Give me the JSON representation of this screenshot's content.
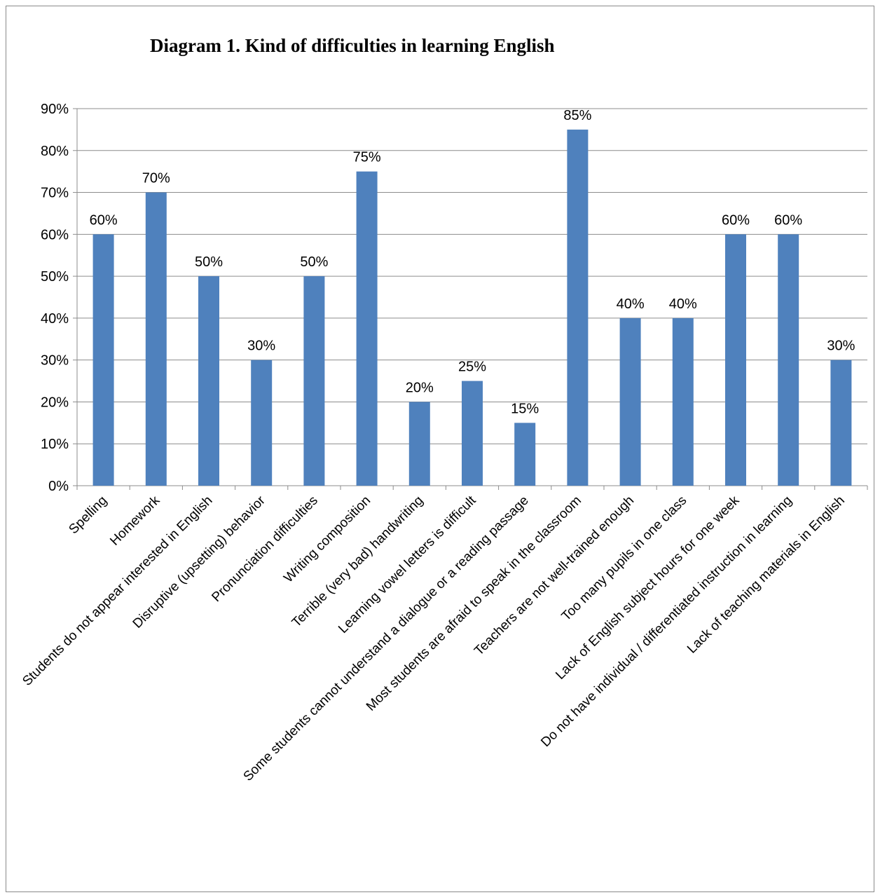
{
  "chart_data": {
    "type": "bar",
    "title": "Diagram 1. Kind of difficulties in learning English",
    "xlabel": "",
    "ylabel": "",
    "ylim": [
      0,
      0.9
    ],
    "y_tick_values": [
      0,
      0.1,
      0.2,
      0.3,
      0.4,
      0.5,
      0.6,
      0.7,
      0.8,
      0.9
    ],
    "y_tick_labels": [
      "0%",
      "10%",
      "20%",
      "30%",
      "40%",
      "50%",
      "60%",
      "70%",
      "80%",
      "90%"
    ],
    "grid": true,
    "legend": "none",
    "bar_color": "#4f81bd",
    "categories": [
      "Spelling",
      "Homework",
      "Students do not appear  interested in English",
      "Disruptive (upsetting) behavior",
      "Pronunciation difficulties",
      "Writing composition",
      "Terrible (very bad) handwriting",
      "Learning vowel letters is difficult",
      "Some students cannot understand  a dialogue or a reading passage",
      "Most students are afraid to speak in the classroom",
      "Teachers are not well-trained enough",
      "Too many pupils in one class",
      "Lack of  English subject hours for one week",
      "Do not have individual / differentiated  instruction in learning",
      "Lack of teaching materials in English"
    ],
    "values": [
      0.6,
      0.7,
      0.5,
      0.3,
      0.5,
      0.75,
      0.2,
      0.25,
      0.15,
      0.85,
      0.4,
      0.4,
      0.6,
      0.6,
      0.3
    ],
    "data_labels": [
      "60%",
      "70%",
      "50%",
      "30%",
      "50%",
      "75%",
      "20%",
      "25%",
      "15%",
      "85%",
      "40%",
      "40%",
      "60%",
      "60%",
      "30%"
    ]
  }
}
